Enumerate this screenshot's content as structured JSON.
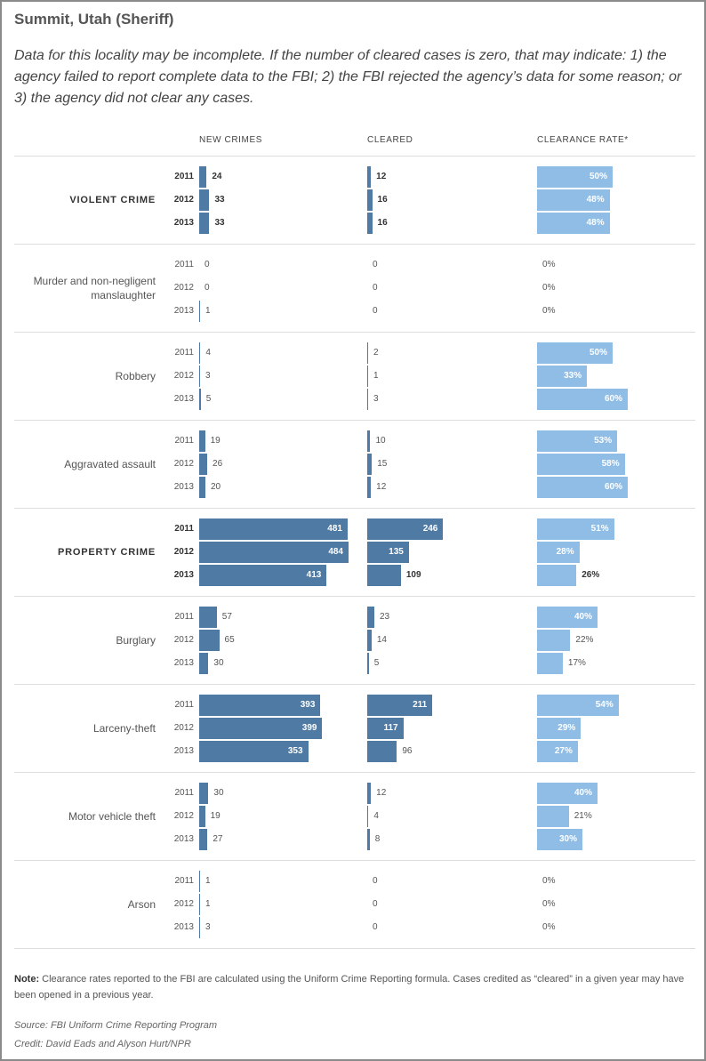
{
  "title": "Summit, Utah (Sheriff)",
  "intro": "Data for this locality may be incomplete. If the number of cleared cases is zero, that may indicate: 1) the agency failed to report complete data to the FBI; 2) the FBI rejected the agency’s data for some reason; or 3) the agency did not clear any cases.",
  "columns": [
    "NEW CRIMES",
    "CLEARED",
    "CLEARANCE RATE*"
  ],
  "note": {
    "label": "Note:",
    "text": " Clearance rates reported to the FBI are calculated using the Uniform Crime Reporting formula. Cases credited as “cleared” in a given year may have been opened in a previous year."
  },
  "source": "Source: FBI Uniform Crime Reporting Program",
  "credit": "Credit: David Eads and Alyson Hurt/NPR",
  "colors": {
    "bar": "#4e7aa4",
    "rate_bar": "#8fbde6",
    "rule": "#dddddd"
  },
  "chart_data": {
    "type": "bar",
    "orientation": "horizontal",
    "years": [
      "2011",
      "2012",
      "2013"
    ],
    "rate_unit": "%",
    "categories": [
      {
        "label": "VIOLENT CRIME",
        "major": true,
        "new_crimes": [
          24,
          33,
          33
        ],
        "cleared": [
          12,
          16,
          16
        ],
        "clearance_rate": [
          50,
          48,
          48
        ]
      },
      {
        "label": "Murder and non-negligent manslaughter",
        "major": false,
        "new_crimes": [
          0,
          0,
          1
        ],
        "cleared": [
          0,
          0,
          0
        ],
        "clearance_rate": [
          0,
          0,
          0
        ]
      },
      {
        "label": "Robbery",
        "major": false,
        "new_crimes": [
          4,
          3,
          5
        ],
        "cleared": [
          2,
          1,
          3
        ],
        "clearance_rate": [
          50,
          33,
          60
        ]
      },
      {
        "label": "Aggravated assault",
        "major": false,
        "new_crimes": [
          19,
          26,
          20
        ],
        "cleared": [
          10,
          15,
          12
        ],
        "clearance_rate": [
          53,
          58,
          60
        ]
      },
      {
        "label": "PROPERTY CRIME",
        "major": true,
        "new_crimes": [
          481,
          484,
          413
        ],
        "cleared": [
          246,
          135,
          109
        ],
        "clearance_rate": [
          51,
          28,
          26
        ]
      },
      {
        "label": "Burglary",
        "major": false,
        "new_crimes": [
          57,
          65,
          30
        ],
        "cleared": [
          23,
          14,
          5
        ],
        "clearance_rate": [
          40,
          22,
          17
        ]
      },
      {
        "label": "Larceny-theft",
        "major": false,
        "new_crimes": [
          393,
          399,
          353
        ],
        "cleared": [
          211,
          117,
          96
        ],
        "clearance_rate": [
          54,
          29,
          27
        ]
      },
      {
        "label": "Motor vehicle theft",
        "major": false,
        "new_crimes": [
          30,
          19,
          27
        ],
        "cleared": [
          12,
          4,
          8
        ],
        "clearance_rate": [
          40,
          21,
          30
        ]
      },
      {
        "label": "Arson",
        "major": false,
        "new_crimes": [
          1,
          1,
          3
        ],
        "cleared": [
          0,
          0,
          0
        ],
        "clearance_rate": [
          0,
          0,
          0
        ]
      }
    ]
  }
}
